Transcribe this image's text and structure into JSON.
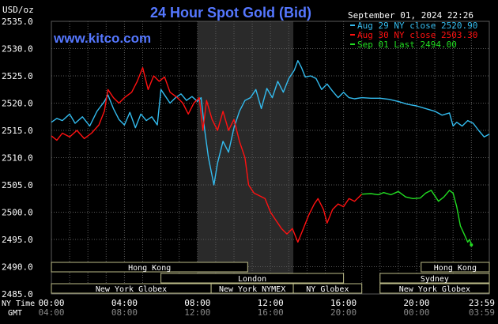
{
  "header": {
    "title": "24 Hour Spot Gold (Bid)",
    "unit": "USD/oz",
    "timestamp": "September 01, 2024 22:26",
    "watermark": "www.kitco.com"
  },
  "legend": [
    {
      "label": "Aug 29 NY close 2520.90",
      "color": "#33bbee"
    },
    {
      "label": "Aug 30 NY close 2503.30",
      "color": "#ff1111"
    },
    {
      "label": "Sep 01 Last 2494.00",
      "color": "#22dd22"
    }
  ],
  "sessions": [
    {
      "label": "Hong Kong",
      "row": 0,
      "start": 0.0,
      "end": 10.75
    },
    {
      "label": "London",
      "row": 1,
      "start": 6.0,
      "end": 16.0
    },
    {
      "label": "New York Globex",
      "row": 2,
      "start": 0.0,
      "end": 8.75
    },
    {
      "label": "New York NYMEX",
      "row": 2,
      "start": 8.75,
      "end": 13.25
    },
    {
      "label": "NY Globex",
      "row": 2,
      "start": 13.25,
      "end": 17.0
    },
    {
      "label": "Hong Kong",
      "row": 0,
      "start": 20.25,
      "end": 23.983
    },
    {
      "label": "Sydney",
      "row": 1,
      "start": 18.0,
      "end": 23.983
    },
    {
      "label": "New York Globex",
      "row": 2,
      "start": 18.0,
      "end": 23.983
    }
  ],
  "time_axis": {
    "row1_label": "NY Time",
    "row2_label": "GMT",
    "ny_ticks": [
      "00:00",
      "04:00",
      "08:00",
      "12:00",
      "16:00",
      "20:00",
      "23:59"
    ],
    "gmt_ticks": [
      "04:00",
      "08:00",
      "12:00",
      "16:00",
      "20:00",
      "00:00",
      "03:59"
    ]
  },
  "colors": {
    "background": "#000000",
    "grid": "#5a5a5a",
    "shade": "#2a2a2a",
    "title": "#5577ff",
    "text": "#ffffff",
    "bar_fill": "#000000",
    "bar_border": "#bbbb88"
  },
  "chart_data": {
    "type": "line",
    "x_unit": "hours (NY Time)",
    "xlim": [
      0,
      23.983
    ],
    "ylim": [
      2485,
      2535
    ],
    "yticks": [
      "2485.0",
      "2490.0",
      "2495.0",
      "2500.0",
      "2505.0",
      "2510.0",
      "2515.0",
      "2520.0",
      "2525.0",
      "2530.0",
      "2535.0"
    ],
    "shaded_region": [
      8.0,
      13.25
    ],
    "series": [
      {
        "name": "Aug 29 NY close 2520.90",
        "color": "#33bbee",
        "points": [
          [
            0,
            2516.5
          ],
          [
            0.3,
            2517.2
          ],
          [
            0.6,
            2516.8
          ],
          [
            1.0,
            2518.0
          ],
          [
            1.3,
            2516.3
          ],
          [
            1.7,
            2517.5
          ],
          [
            2.1,
            2515.8
          ],
          [
            2.5,
            2518.5
          ],
          [
            2.9,
            2520.3
          ],
          [
            3.1,
            2521.5
          ],
          [
            3.4,
            2519.0
          ],
          [
            3.7,
            2517.0
          ],
          [
            4.0,
            2516.0
          ],
          [
            4.3,
            2518.3
          ],
          [
            4.6,
            2515.5
          ],
          [
            4.9,
            2518.0
          ],
          [
            5.2,
            2516.8
          ],
          [
            5.5,
            2517.5
          ],
          [
            5.8,
            2516.0
          ],
          [
            6.0,
            2522.5
          ],
          [
            6.2,
            2521.5
          ],
          [
            6.5,
            2520.0
          ],
          [
            6.8,
            2521.0
          ],
          [
            7.1,
            2521.7
          ],
          [
            7.4,
            2520.5
          ],
          [
            7.7,
            2521.2
          ],
          [
            8.0,
            2520.3
          ],
          [
            8.2,
            2521.0
          ],
          [
            8.4,
            2515.0
          ],
          [
            8.6,
            2510.0
          ],
          [
            8.9,
            2505.0
          ],
          [
            9.1,
            2509.0
          ],
          [
            9.4,
            2513.0
          ],
          [
            9.7,
            2511.0
          ],
          [
            10.0,
            2515.5
          ],
          [
            10.3,
            2518.5
          ],
          [
            10.6,
            2520.5
          ],
          [
            10.9,
            2521.0
          ],
          [
            11.2,
            2522.5
          ],
          [
            11.5,
            2519.0
          ],
          [
            11.8,
            2522.7
          ],
          [
            12.1,
            2521.0
          ],
          [
            12.4,
            2524.0
          ],
          [
            12.7,
            2522.0
          ],
          [
            13.0,
            2524.5
          ],
          [
            13.3,
            2526.0
          ],
          [
            13.5,
            2527.8
          ],
          [
            13.7,
            2526.5
          ],
          [
            13.9,
            2524.8
          ],
          [
            14.2,
            2525.0
          ],
          [
            14.5,
            2524.5
          ],
          [
            14.8,
            2522.5
          ],
          [
            15.1,
            2523.5
          ],
          [
            15.4,
            2522.2
          ],
          [
            15.7,
            2521.0
          ],
          [
            16.0,
            2522.0
          ],
          [
            16.3,
            2521.0
          ],
          [
            16.6,
            2520.8
          ],
          [
            17.0,
            2521.0
          ],
          [
            17.5,
            2520.9
          ],
          [
            18.0,
            2520.9
          ],
          [
            18.5,
            2520.7
          ],
          [
            19.0,
            2520.3
          ],
          [
            19.5,
            2519.8
          ],
          [
            20.0,
            2519.5
          ],
          [
            20.5,
            2519.0
          ],
          [
            21.0,
            2518.5
          ],
          [
            21.4,
            2517.8
          ],
          [
            21.8,
            2518.2
          ],
          [
            22.0,
            2515.8
          ],
          [
            22.2,
            2516.5
          ],
          [
            22.5,
            2515.8
          ],
          [
            22.8,
            2516.8
          ],
          [
            23.1,
            2516.3
          ],
          [
            23.4,
            2515.0
          ],
          [
            23.7,
            2513.8
          ],
          [
            23.983,
            2514.3
          ]
        ]
      },
      {
        "name": "Aug 30 NY close 2503.30",
        "color": "#ff1111",
        "points": [
          [
            0,
            2514.0
          ],
          [
            0.3,
            2513.2
          ],
          [
            0.6,
            2514.5
          ],
          [
            1.0,
            2513.8
          ],
          [
            1.4,
            2515.0
          ],
          [
            1.8,
            2513.5
          ],
          [
            2.2,
            2514.5
          ],
          [
            2.6,
            2516.0
          ],
          [
            2.9,
            2518.5
          ],
          [
            3.1,
            2522.5
          ],
          [
            3.4,
            2521.0
          ],
          [
            3.7,
            2520.0
          ],
          [
            4.0,
            2521.0
          ],
          [
            4.4,
            2522.0
          ],
          [
            4.7,
            2524.0
          ],
          [
            5.0,
            2526.5
          ],
          [
            5.3,
            2522.5
          ],
          [
            5.6,
            2525.0
          ],
          [
            5.9,
            2524.0
          ],
          [
            6.2,
            2524.8
          ],
          [
            6.5,
            2522.0
          ],
          [
            6.9,
            2521.0
          ],
          [
            7.2,
            2520.0
          ],
          [
            7.5,
            2518.0
          ],
          [
            7.8,
            2520.0
          ],
          [
            8.1,
            2521.0
          ],
          [
            8.3,
            2515.0
          ],
          [
            8.5,
            2520.5
          ],
          [
            8.8,
            2517.0
          ],
          [
            9.1,
            2515.0
          ],
          [
            9.4,
            2518.5
          ],
          [
            9.7,
            2515.0
          ],
          [
            10.0,
            2517.0
          ],
          [
            10.3,
            2513.0
          ],
          [
            10.6,
            2510.0
          ],
          [
            10.8,
            2505.0
          ],
          [
            11.1,
            2503.5
          ],
          [
            11.4,
            2503.0
          ],
          [
            11.7,
            2502.5
          ],
          [
            12.0,
            2500.0
          ],
          [
            12.3,
            2498.5
          ],
          [
            12.6,
            2497.0
          ],
          [
            12.9,
            2496.0
          ],
          [
            13.2,
            2497.0
          ],
          [
            13.5,
            2494.5
          ],
          [
            13.8,
            2497.0
          ],
          [
            14.1,
            2499.5
          ],
          [
            14.4,
            2501.5
          ],
          [
            14.6,
            2502.5
          ],
          [
            14.9,
            2500.5
          ],
          [
            15.1,
            2498.0
          ],
          [
            15.4,
            2500.5
          ],
          [
            15.7,
            2501.5
          ],
          [
            16.0,
            2501.0
          ],
          [
            16.3,
            2502.5
          ],
          [
            16.6,
            2502.0
          ],
          [
            17.0,
            2503.3
          ]
        ]
      },
      {
        "name": "Sep 01 Last 2494.00",
        "color": "#22dd22",
        "points": [
          [
            17.0,
            2503.3
          ],
          [
            17.5,
            2503.4
          ],
          [
            17.9,
            2503.2
          ],
          [
            18.2,
            2503.6
          ],
          [
            18.6,
            2503.2
          ],
          [
            19.0,
            2503.8
          ],
          [
            19.4,
            2502.8
          ],
          [
            19.8,
            2502.5
          ],
          [
            20.2,
            2502.6
          ],
          [
            20.5,
            2503.5
          ],
          [
            20.8,
            2504.0
          ],
          [
            21.0,
            2503.0
          ],
          [
            21.2,
            2502.0
          ],
          [
            21.5,
            2502.8
          ],
          [
            21.8,
            2504.0
          ],
          [
            22.0,
            2503.5
          ],
          [
            22.2,
            2501.0
          ],
          [
            22.4,
            2497.5
          ],
          [
            22.6,
            2496.0
          ],
          [
            22.8,
            2494.5
          ],
          [
            22.9,
            2495.0
          ],
          [
            23.0,
            2494.0
          ]
        ]
      }
    ]
  }
}
